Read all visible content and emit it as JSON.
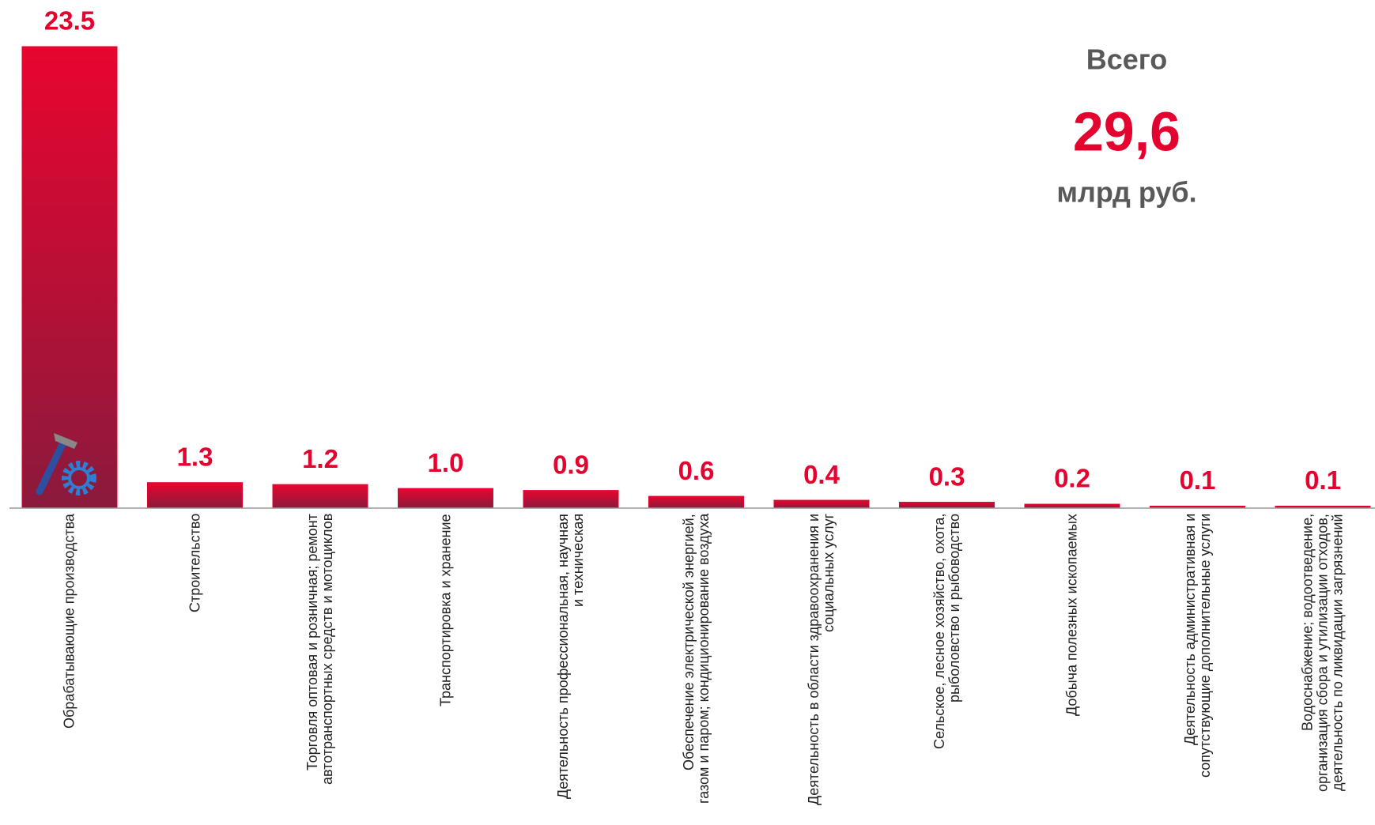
{
  "chart_data": {
    "type": "bar",
    "categories": [
      "Обрабатывающие производства",
      "Строительство",
      "Торговля оптовая и розничная; ремонт автотранспортных средств и мотоциклов",
      "Транспортировка и хранение",
      "Деятельность профессиональная, научная и техническая",
      "Обеспечение электрической энергией, газом и паром; кондиционирование воздуха",
      "Деятельность в области здравоохранения и социальных услуг",
      "Сельское, лесное хозяйство, охота, рыболовство и рыбоводство",
      "Добыча полезных ископаемых",
      "Деятельность административная и сопутствующие дополнительные услуги",
      "Водоснабжение; водоотведение, организация сбора и утилизации отходов, деятельность по ликвидации загрязнений"
    ],
    "values": [
      23.5,
      1.3,
      1.2,
      1.0,
      0.9,
      0.6,
      0.4,
      0.3,
      0.2,
      0.1,
      0.1
    ],
    "value_labels": [
      "23.5",
      "1.3",
      "1.2",
      "1.0",
      "0.9",
      "0.6",
      "0.4",
      "0.3",
      "0.2",
      "0.1",
      "0.1"
    ],
    "color": "#e4032e",
    "ylim": [
      0,
      23.5
    ],
    "annotations": [
      "Всего",
      "29,6",
      "млрд руб."
    ]
  }
}
